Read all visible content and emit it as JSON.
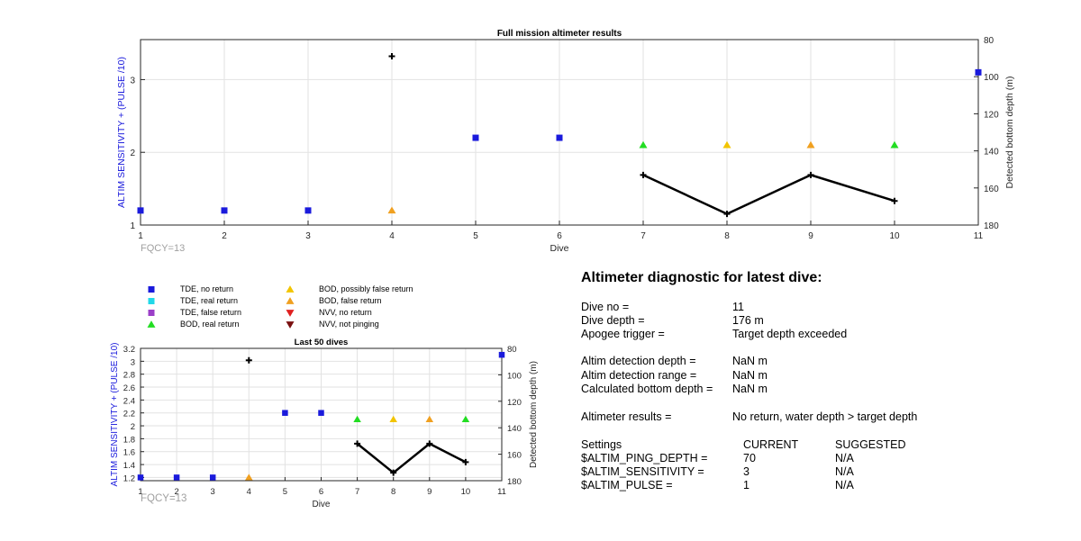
{
  "chart_data": [
    {
      "type": "scatter",
      "title": "Full mission altimeter results",
      "xlabel": "Dive",
      "ylabel": "ALTIM SENSITIVITY + (PULSE /10)",
      "ylabel_right": "Detected bottom depth (m)",
      "xlim": [
        1,
        11
      ],
      "ylim": [
        1,
        3.55
      ],
      "ylim_right": [
        180,
        80
      ],
      "x_ticks": [
        "1",
        "2",
        "3",
        "4",
        "5",
        "6",
        "7",
        "8",
        "9",
        "10",
        "11"
      ],
      "y_ticks": [
        "1",
        "2",
        "3"
      ],
      "y_ticks_right": [
        "80",
        "100",
        "120",
        "140",
        "160",
        "180"
      ],
      "grid": true,
      "annotation": "FQCY=13",
      "series": [
        {
          "name": "TDE, no return",
          "marker": "square",
          "color": "#1a1adc",
          "axis": "left",
          "points": [
            [
              1,
              1.2
            ],
            [
              2,
              1.2
            ],
            [
              3,
              1.2
            ],
            [
              5,
              2.2
            ],
            [
              6,
              2.2
            ],
            [
              11,
              3.1
            ]
          ]
        },
        {
          "name": "BOD, real return",
          "marker": "triangle-up",
          "color": "#22dd22",
          "axis": "left",
          "points": [
            [
              7,
              2.1
            ],
            [
              10,
              2.1
            ]
          ]
        },
        {
          "name": "BOD, possibly false return",
          "marker": "triangle-up",
          "color": "#f2c400",
          "axis": "left",
          "points": [
            [
              8,
              2.1
            ]
          ]
        },
        {
          "name": "BOD, false return",
          "marker": "triangle-up",
          "color": "#f0a020",
          "axis": "left",
          "points": [
            [
              4,
              1.2
            ],
            [
              9,
              2.1
            ]
          ]
        },
        {
          "name": "Detected bottom depth",
          "marker": "plus",
          "color": "#000000",
          "axis": "right",
          "line": false,
          "points": [
            [
              4,
              89
            ]
          ]
        },
        {
          "name": "Detected bottom depth",
          "marker": "plus",
          "color": "#000000",
          "axis": "right",
          "line": true,
          "points": [
            [
              7,
              153
            ],
            [
              8,
              174
            ],
            [
              9,
              153
            ],
            [
              10,
              167
            ]
          ]
        }
      ]
    },
    {
      "type": "scatter",
      "title": "Last 50 dives",
      "xlabel": "Dive",
      "ylabel": "ALTIM SENSITIVITY + (PULSE /10)",
      "ylabel_right": "Detected bottom depth (m)",
      "xlim": [
        1,
        11
      ],
      "ylim": [
        1.15,
        3.2
      ],
      "ylim_right": [
        180,
        80
      ],
      "x_ticks": [
        "1",
        "2",
        "3",
        "4",
        "5",
        "6",
        "7",
        "8",
        "9",
        "10",
        "11"
      ],
      "y_ticks": [
        "1.2",
        "1.4",
        "1.6",
        "1.8",
        "2",
        "2.2",
        "2.4",
        "2.6",
        "2.8",
        "3",
        "3.2"
      ],
      "y_ticks_right": [
        "80",
        "100",
        "120",
        "140",
        "160",
        "180"
      ],
      "grid": true,
      "annotation": "FQCY=13",
      "series": [
        {
          "name": "TDE, no return",
          "marker": "square",
          "color": "#1a1adc",
          "axis": "left",
          "points": [
            [
              1,
              1.2
            ],
            [
              2,
              1.2
            ],
            [
              3,
              1.2
            ],
            [
              5,
              2.2
            ],
            [
              6,
              2.2
            ],
            [
              11,
              3.1
            ]
          ]
        },
        {
          "name": "BOD, real return",
          "marker": "triangle-up",
          "color": "#22dd22",
          "axis": "left",
          "points": [
            [
              7,
              2.1
            ],
            [
              10,
              2.1
            ]
          ]
        },
        {
          "name": "BOD, possibly false return",
          "marker": "triangle-up",
          "color": "#f2c400",
          "axis": "left",
          "points": [
            [
              8,
              2.1
            ]
          ]
        },
        {
          "name": "BOD, false return",
          "marker": "triangle-up",
          "color": "#f0a020",
          "axis": "left",
          "points": [
            [
              4,
              1.2
            ],
            [
              9,
              2.1
            ]
          ]
        },
        {
          "name": "Detected bottom depth",
          "marker": "plus",
          "color": "#000000",
          "axis": "right",
          "line": false,
          "points": [
            [
              4,
              89
            ]
          ]
        },
        {
          "name": "Detected bottom depth",
          "marker": "plus",
          "color": "#000000",
          "axis": "right",
          "line": true,
          "points": [
            [
              7,
              152
            ],
            [
              8,
              174
            ],
            [
              9,
              152
            ],
            [
              10,
              166
            ]
          ]
        }
      ]
    }
  ],
  "legend": [
    {
      "label": "TDE, no return",
      "marker": "square",
      "color": "#1a1adc"
    },
    {
      "label": "TDE, real return",
      "marker": "square",
      "color": "#22d8e8"
    },
    {
      "label": "TDE, false return",
      "marker": "square",
      "color": "#9b3fc8"
    },
    {
      "label": "BOD, real return",
      "marker": "triangle-up",
      "color": "#22dd22"
    },
    {
      "label": "BOD, possibly false return",
      "marker": "triangle-up",
      "color": "#f2c400"
    },
    {
      "label": "BOD, false return",
      "marker": "triangle-up",
      "color": "#f0a020"
    },
    {
      "label": "NVV, no return",
      "marker": "triangle-down",
      "color": "#e02020"
    },
    {
      "label": "NVV, not pinging",
      "marker": "triangle-down",
      "color": "#7a1010"
    }
  ],
  "diagnostic": {
    "title": "Altimeter diagnostic for latest dive:",
    "dive_no_label": "Dive no =",
    "dive_no": "11",
    "dive_depth_label": "Dive depth =",
    "dive_depth": "176 m",
    "apogee_label": "Apogee trigger =",
    "apogee": "Target depth exceeded",
    "det_depth_label": "Altim detection depth =",
    "det_depth": "NaN m",
    "det_range_label": "Altim detection range =",
    "det_range": "NaN m",
    "calc_depth_label": "Calculated bottom depth =",
    "calc_depth": "NaN m",
    "results_label": "Altimeter results =",
    "results": "No return, water depth > target depth",
    "settings_label": "Settings",
    "current_header": "CURRENT",
    "suggested_header": "SUGGESTED",
    "ping_depth_label": "$ALTIM_PING_DEPTH =",
    "ping_depth_current": "70",
    "ping_depth_suggested": "N/A",
    "sensitivity_label": "$ALTIM_SENSITIVITY =",
    "sensitivity_current": "3",
    "sensitivity_suggested": "N/A",
    "pulse_label": "$ALTIM_PULSE =",
    "pulse_current": "1",
    "pulse_suggested": "N/A"
  },
  "colors": {
    "axis_label_left": "#1a1adc",
    "grid": "#e2e2e2",
    "annotation": "#a0a0a0",
    "depth_line": "#000000"
  }
}
